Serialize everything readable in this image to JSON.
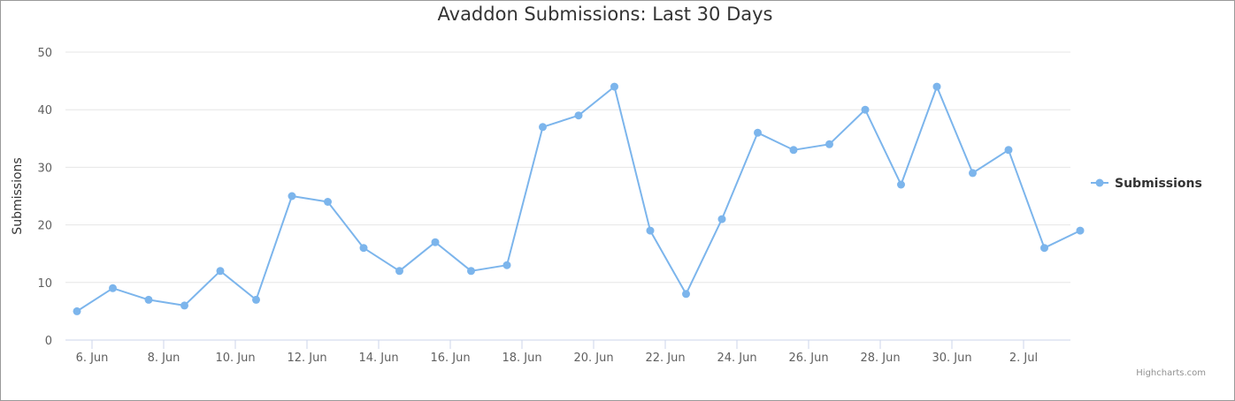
{
  "chart_data": {
    "type": "line",
    "title": "Avaddon Submissions: Last 30 Days",
    "xlabel": "",
    "ylabel": "Submissions",
    "ylim": [
      0,
      50
    ],
    "yticks": [
      0,
      10,
      20,
      30,
      40,
      50
    ],
    "x_tick_labels": [
      "6. Jun",
      "8. Jun",
      "10. Jun",
      "12. Jun",
      "14. Jun",
      "16. Jun",
      "18. Jun",
      "20. Jun",
      "22. Jun",
      "24. Jun",
      "26. Jun",
      "28. Jun",
      "30. Jun",
      "2. Jul"
    ],
    "grid": true,
    "legend_position": "right",
    "series": [
      {
        "name": "Submissions",
        "color": "#7cb5ec",
        "points": [
          {
            "x": "5. Jun",
            "y": 5
          },
          {
            "x": "6. Jun",
            "y": 9
          },
          {
            "x": "7. Jun",
            "y": 7
          },
          {
            "x": "8. Jun",
            "y": 6
          },
          {
            "x": "9. Jun",
            "y": 12
          },
          {
            "x": "10. Jun",
            "y": 7
          },
          {
            "x": "11. Jun",
            "y": 25
          },
          {
            "x": "12. Jun",
            "y": 24
          },
          {
            "x": "13. Jun",
            "y": 16
          },
          {
            "x": "14. Jun",
            "y": 12
          },
          {
            "x": "15. Jun",
            "y": 17
          },
          {
            "x": "16. Jun",
            "y": 12
          },
          {
            "x": "17. Jun",
            "y": 13
          },
          {
            "x": "18. Jun",
            "y": 37
          },
          {
            "x": "19. Jun",
            "y": 39
          },
          {
            "x": "20. Jun",
            "y": 44
          },
          {
            "x": "21. Jun",
            "y": 19
          },
          {
            "x": "22. Jun",
            "y": 8
          },
          {
            "x": "23. Jun",
            "y": 21
          },
          {
            "x": "24. Jun",
            "y": 36
          },
          {
            "x": "25. Jun",
            "y": 33
          },
          {
            "x": "26. Jun",
            "y": 34
          },
          {
            "x": "27. Jun",
            "y": 40
          },
          {
            "x": "28. Jun",
            "y": 27
          },
          {
            "x": "29. Jun",
            "y": 44
          },
          {
            "x": "30. Jun",
            "y": 29
          },
          {
            "x": "1. Jul",
            "y": 33
          },
          {
            "x": "2. Jul",
            "y": 16
          },
          {
            "x": "3. Jul",
            "y": 19
          }
        ]
      }
    ]
  },
  "credits": "Highcharts.com"
}
